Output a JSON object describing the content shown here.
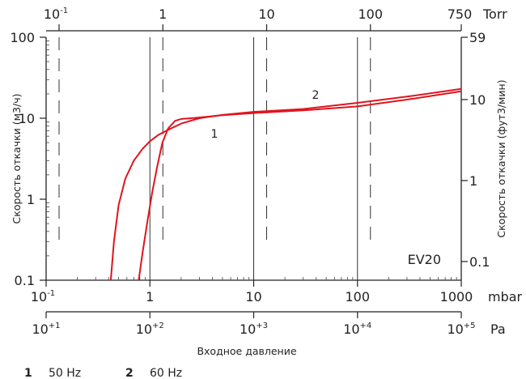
{
  "chart_data": {
    "type": "line",
    "model_label": "EV20",
    "x_scale": "log",
    "y_scale": "log",
    "xlim_mbar": [
      0.1,
      1000
    ],
    "ylim_m3h": [
      0.1,
      100
    ],
    "grid": "vertical lines only (solid at mbar decades 1, 10, 100; dashed at Torr decades)",
    "ylabel_left": "Скорость откачки (м3/ч)",
    "ylabel_right": "Скорость откачки (фут3/мин)",
    "xlabel": "Входное давление",
    "x_axis_mbar": {
      "unit": "mbar",
      "tick_labels": [
        "10",
        "-1",
        "1",
        "10",
        "100",
        "1000"
      ]
    },
    "x_axis_pa": {
      "unit": "Pa",
      "tick_labels": [
        {
          "base": "10",
          "exp": "+1"
        },
        {
          "base": "10",
          "exp": "+2"
        },
        {
          "base": "10",
          "exp": "+3"
        },
        {
          "base": "10",
          "exp": "+4"
        },
        {
          "base": "10",
          "exp": "+5"
        }
      ]
    },
    "x_axis_torr": {
      "unit": "Torr",
      "ticks": [
        {
          "value_mbar": 0.1333,
          "base": "10",
          "exp": "-1"
        },
        {
          "value_mbar": 1.333,
          "label": "1"
        },
        {
          "value_mbar": 13.33,
          "label": "10"
        },
        {
          "value_mbar": 133.3,
          "label": "100"
        },
        {
          "value_mbar": 1000,
          "label": "750"
        }
      ]
    },
    "y_axis_left": {
      "tick_labels": [
        "100",
        "10",
        "1",
        "0.1"
      ],
      "values": [
        100,
        10,
        1,
        0.1
      ]
    },
    "y_axis_right": {
      "ticks": [
        {
          "value_m3h": 100,
          "label": "59"
        },
        {
          "value_m3h": 17,
          "label": "10"
        },
        {
          "value_m3h": 1.7,
          "label": "1"
        },
        {
          "value_m3h": 0.17,
          "label": "0.1"
        }
      ]
    },
    "series": [
      {
        "name": "50 Hz",
        "curve_label": "1",
        "color": "#e0141e",
        "points": [
          [
            0.78,
            0.1
          ],
          [
            0.85,
            0.22
          ],
          [
            0.95,
            0.55
          ],
          [
            1.05,
            1.2
          ],
          [
            1.18,
            2.6
          ],
          [
            1.32,
            5.0
          ],
          [
            1.5,
            7.5
          ],
          [
            1.75,
            9.3
          ],
          [
            2.0,
            9.8
          ],
          [
            2.5,
            10.0
          ],
          [
            3.5,
            10.4
          ],
          [
            5,
            10.9
          ],
          [
            10,
            11.6
          ],
          [
            30,
            12.5
          ],
          [
            100,
            14.0
          ],
          [
            300,
            17.0
          ],
          [
            1000,
            21.5
          ]
        ]
      },
      {
        "name": "60 Hz",
        "curve_label": "2",
        "color": "#e0141e",
        "points": [
          [
            0.42,
            0.1
          ],
          [
            0.45,
            0.3
          ],
          [
            0.5,
            0.85
          ],
          [
            0.58,
            1.8
          ],
          [
            0.7,
            3.0
          ],
          [
            0.85,
            4.2
          ],
          [
            1.0,
            5.2
          ],
          [
            1.2,
            6.2
          ],
          [
            1.5,
            7.2
          ],
          [
            2.0,
            8.6
          ],
          [
            3.0,
            10.0
          ],
          [
            5,
            11.0
          ],
          [
            10,
            12.0
          ],
          [
            30,
            13.0
          ],
          [
            100,
            15.5
          ],
          [
            300,
            18.5
          ],
          [
            1000,
            23.0
          ]
        ]
      }
    ]
  },
  "legend": [
    {
      "num": "1",
      "text": "50 Hz"
    },
    {
      "num": "2",
      "text": "60 Hz"
    }
  ]
}
